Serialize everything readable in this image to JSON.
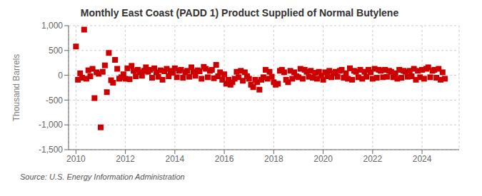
{
  "chart_data": {
    "type": "scatter",
    "title": "Monthly East Coast (PADD 1) Product Supplied of Normal Butylene",
    "ylabel": "Thousand Barrels",
    "annotations": [
      "Source: U.S. Energy Information Administration"
    ],
    "color": "#cc0000",
    "marker": "square",
    "grid": true,
    "xlim": [
      2009.7,
      2025.5
    ],
    "xticks": [
      2010,
      2012,
      2014,
      2016,
      2018,
      2020,
      2022,
      2024
    ],
    "ylim": [
      -1500,
      1000
    ],
    "yticks": [
      {
        "value": -1500,
        "label": "-1,500"
      },
      {
        "value": -1000,
        "label": "-1,000"
      },
      -500,
      0,
      500,
      {
        "value": 1000,
        "label": "1,000"
      }
    ],
    "x": [
      2010.0,
      2010.08,
      2010.17,
      2010.25,
      2010.33,
      2010.42,
      2010.5,
      2010.58,
      2010.67,
      2010.75,
      2010.83,
      2010.92,
      2011.0,
      2011.08,
      2011.17,
      2011.25,
      2011.33,
      2011.42,
      2011.5,
      2011.58,
      2011.67,
      2011.75,
      2011.83,
      2011.92,
      2012.0,
      2012.08,
      2012.17,
      2012.25,
      2012.33,
      2012.42,
      2012.5,
      2012.58,
      2012.67,
      2012.75,
      2012.83,
      2012.92,
      2013.0,
      2013.08,
      2013.17,
      2013.25,
      2013.33,
      2013.42,
      2013.5,
      2013.58,
      2013.67,
      2013.75,
      2013.83,
      2013.92,
      2014.0,
      2014.08,
      2014.17,
      2014.25,
      2014.33,
      2014.42,
      2014.5,
      2014.58,
      2014.67,
      2014.75,
      2014.83,
      2014.92,
      2015.0,
      2015.08,
      2015.17,
      2015.25,
      2015.33,
      2015.42,
      2015.5,
      2015.58,
      2015.67,
      2015.75,
      2015.83,
      2015.92,
      2016.0,
      2016.08,
      2016.17,
      2016.25,
      2016.33,
      2016.42,
      2016.5,
      2016.58,
      2016.67,
      2016.75,
      2016.83,
      2016.92,
      2017.0,
      2017.08,
      2017.17,
      2017.25,
      2017.33,
      2017.42,
      2017.5,
      2017.58,
      2017.67,
      2017.75,
      2017.83,
      2017.92,
      2018.0,
      2018.08,
      2018.17,
      2018.25,
      2018.33,
      2018.42,
      2018.5,
      2018.58,
      2018.67,
      2018.75,
      2018.83,
      2018.92,
      2019.0,
      2019.08,
      2019.17,
      2019.25,
      2019.33,
      2019.42,
      2019.5,
      2019.58,
      2019.67,
      2019.75,
      2019.83,
      2019.92,
      2020.0,
      2020.08,
      2020.17,
      2020.25,
      2020.33,
      2020.42,
      2020.5,
      2020.58,
      2020.67,
      2020.75,
      2020.83,
      2020.92,
      2021.0,
      2021.08,
      2021.17,
      2021.25,
      2021.33,
      2021.42,
      2021.5,
      2021.58,
      2021.67,
      2021.75,
      2021.83,
      2021.92,
      2022.0,
      2022.08,
      2022.17,
      2022.25,
      2022.33,
      2022.42,
      2022.5,
      2022.58,
      2022.67,
      2022.75,
      2022.83,
      2022.92,
      2023.0,
      2023.08,
      2023.17,
      2023.25,
      2023.33,
      2023.42,
      2023.5,
      2023.58,
      2023.67,
      2023.75,
      2023.83,
      2023.92,
      2024.0,
      2024.08,
      2024.17,
      2024.25,
      2024.33,
      2024.42,
      2024.5,
      2024.58,
      2024.67,
      2024.75,
      2024.83,
      2024.92
    ],
    "values": [
      580,
      -90,
      40,
      -50,
      920,
      -70,
      100,
      -20,
      130,
      -460,
      60,
      30,
      -1050,
      70,
      200,
      -340,
      450,
      -100,
      -150,
      310,
      130,
      -70,
      -40,
      20,
      -70,
      140,
      -80,
      190,
      90,
      -20,
      110,
      60,
      -10,
      90,
      160,
      70,
      110,
      -50,
      140,
      60,
      -30,
      100,
      -90,
      80,
      130,
      -20,
      90,
      50,
      140,
      -40,
      90,
      110,
      -50,
      60,
      90,
      -30,
      160,
      70,
      -10,
      100,
      80,
      -70,
      170,
      130,
      -40,
      90,
      110,
      -60,
      210,
      -20,
      60,
      -90,
      20,
      -170,
      -90,
      -190,
      -140,
      -70,
      70,
      -40,
      90,
      -110,
      60,
      -20,
      -70,
      -190,
      -240,
      -90,
      -140,
      -290,
      -90,
      -40,
      110,
      -70,
      70,
      -30,
      -140,
      -190,
      -170,
      90,
      110,
      60,
      -90,
      -140,
      90,
      -70,
      60,
      -20,
      -40,
      130,
      -70,
      110,
      70,
      -30,
      90,
      -50,
      50,
      -70,
      70,
      -10,
      -90,
      60,
      -20,
      90,
      -40,
      40,
      70,
      -30,
      90,
      110,
      -50,
      40,
      -70,
      140,
      -90,
      90,
      70,
      -40,
      110,
      -70,
      70,
      -30,
      110,
      60,
      -70,
      130,
      -50,
      110,
      90,
      -40,
      110,
      -30,
      90,
      70,
      -40,
      40,
      -70,
      110,
      -50,
      90,
      70,
      -30,
      90,
      -20,
      130,
      -90,
      90,
      -40,
      110,
      -70,
      130,
      160,
      -40,
      90,
      110,
      -50,
      130,
      -90,
      60,
      -70
    ]
  }
}
